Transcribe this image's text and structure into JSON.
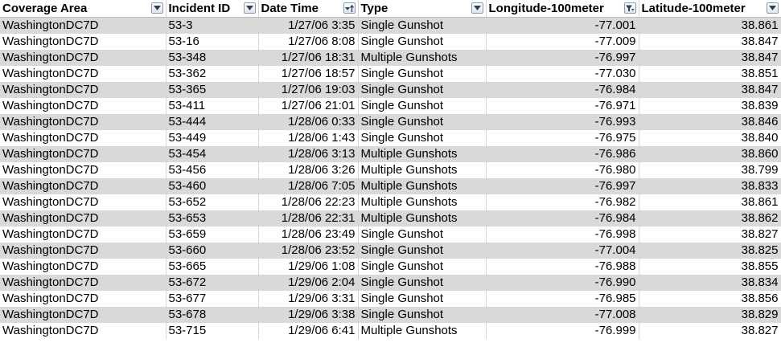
{
  "headers": [
    {
      "label": "Coverage Area",
      "filter_icon": "dropdown-arrow-icon"
    },
    {
      "label": "Incident ID",
      "filter_icon": "dropdown-arrow-icon"
    },
    {
      "label": "Date Time",
      "filter_icon": "sort-ascending-icon"
    },
    {
      "label": "Type",
      "filter_icon": "dropdown-arrow-icon"
    },
    {
      "label": "Longitude-100meter",
      "filter_icon": "filter-active-icon"
    },
    {
      "label": "Latitude-100meter",
      "filter_icon": "dropdown-arrow-icon"
    }
  ],
  "rows": [
    [
      "WashingtonDC7D",
      "53-3",
      "1/27/06 3:35",
      "Single Gunshot",
      "-77.001",
      "38.861"
    ],
    [
      "WashingtonDC7D",
      "53-16",
      "1/27/06 8:08",
      "Single Gunshot",
      "-77.009",
      "38.847"
    ],
    [
      "WashingtonDC7D",
      "53-348",
      "1/27/06 18:31",
      "Multiple Gunshots",
      "-76.997",
      "38.847"
    ],
    [
      "WashingtonDC7D",
      "53-362",
      "1/27/06 18:57",
      "Single Gunshot",
      "-77.030",
      "38.851"
    ],
    [
      "WashingtonDC7D",
      "53-365",
      "1/27/06 19:03",
      "Single Gunshot",
      "-76.984",
      "38.847"
    ],
    [
      "WashingtonDC7D",
      "53-411",
      "1/27/06 21:01",
      "Single Gunshot",
      "-76.971",
      "38.839"
    ],
    [
      "WashingtonDC7D",
      "53-444",
      "1/28/06 0:33",
      "Single Gunshot",
      "-76.993",
      "38.846"
    ],
    [
      "WashingtonDC7D",
      "53-449",
      "1/28/06 1:43",
      "Single Gunshot",
      "-76.975",
      "38.840"
    ],
    [
      "WashingtonDC7D",
      "53-454",
      "1/28/06 3:13",
      "Multiple Gunshots",
      "-76.986",
      "38.860"
    ],
    [
      "WashingtonDC7D",
      "53-456",
      "1/28/06 3:26",
      "Multiple Gunshots",
      "-76.980",
      "38.799"
    ],
    [
      "WashingtonDC7D",
      "53-460",
      "1/28/06 7:05",
      "Multiple Gunshots",
      "-76.997",
      "38.833"
    ],
    [
      "WashingtonDC7D",
      "53-652",
      "1/28/06 22:23",
      "Multiple Gunshots",
      "-76.982",
      "38.861"
    ],
    [
      "WashingtonDC7D",
      "53-653",
      "1/28/06 22:31",
      "Multiple Gunshots",
      "-76.984",
      "38.862"
    ],
    [
      "WashingtonDC7D",
      "53-659",
      "1/28/06 23:49",
      "Single Gunshot",
      "-76.998",
      "38.827"
    ],
    [
      "WashingtonDC7D",
      "53-660",
      "1/28/06 23:52",
      "Single Gunshot",
      "-77.004",
      "38.825"
    ],
    [
      "WashingtonDC7D",
      "53-665",
      "1/29/06 1:08",
      "Single Gunshot",
      "-76.988",
      "38.855"
    ],
    [
      "WashingtonDC7D",
      "53-672",
      "1/29/06 2:04",
      "Single Gunshot",
      "-76.990",
      "38.834"
    ],
    [
      "WashingtonDC7D",
      "53-677",
      "1/29/06 3:31",
      "Single Gunshot",
      "-76.985",
      "38.856"
    ],
    [
      "WashingtonDC7D",
      "53-678",
      "1/29/06 3:38",
      "Single Gunshot",
      "-77.008",
      "38.829"
    ],
    [
      "WashingtonDC7D",
      "53-715",
      "1/29/06 6:41",
      "Multiple Gunshots",
      "-76.999",
      "38.827"
    ]
  ],
  "colors": {
    "band": "#d9d9d9",
    "white": "#ffffff"
  }
}
